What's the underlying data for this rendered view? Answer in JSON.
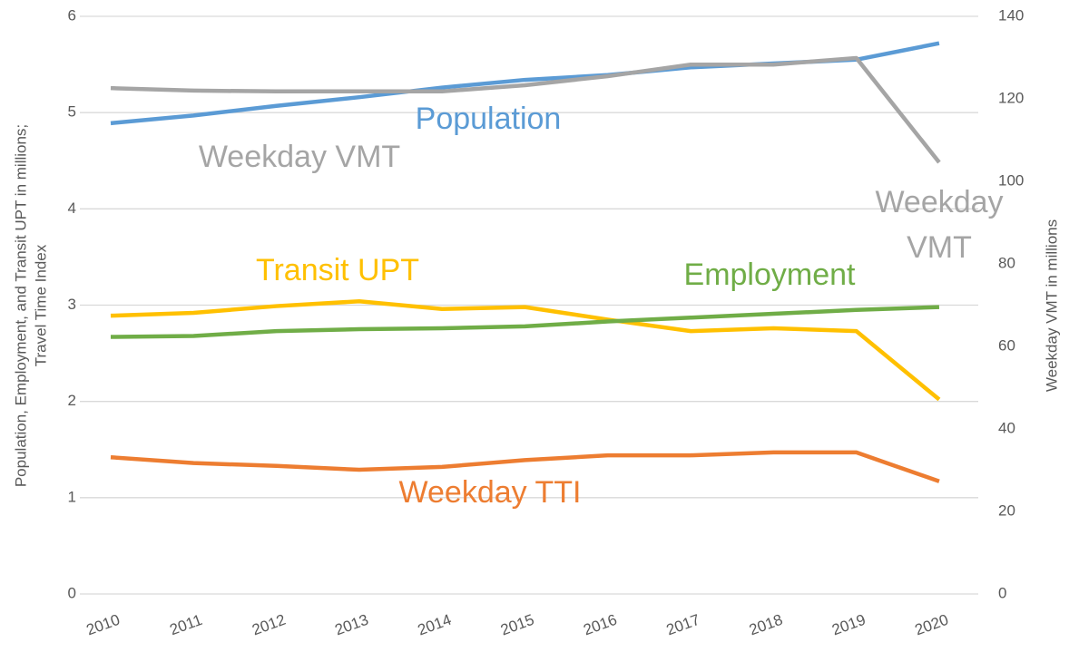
{
  "chart_data": {
    "type": "line",
    "categories": [
      "2010",
      "2011",
      "2012",
      "2013",
      "2014",
      "2015",
      "2016",
      "2017",
      "2018",
      "2019",
      "2020"
    ],
    "series": [
      {
        "name": "Population",
        "color": "#5b9bd5",
        "values": [
          4.89,
          4.97,
          5.07,
          5.16,
          5.26,
          5.34,
          5.39,
          5.47,
          5.51,
          5.55,
          5.72
        ]
      },
      {
        "name": "Weekday VMT",
        "color": "#a5a5a5",
        "axis": "y2",
        "values": [
          122.6,
          122.0,
          121.8,
          121.8,
          121.8,
          123.3,
          125.5,
          128.3,
          128.3,
          129.9,
          104.6
        ]
      },
      {
        "name": "Transit UPT",
        "color": "#ffc000",
        "values": [
          2.89,
          2.92,
          2.99,
          3.04,
          2.96,
          2.98,
          2.85,
          2.73,
          2.76,
          2.73,
          2.02
        ]
      },
      {
        "name": "Employment",
        "color": "#70ad47",
        "values": [
          2.67,
          2.68,
          2.73,
          2.75,
          2.76,
          2.78,
          2.83,
          2.87,
          2.91,
          2.95,
          2.98
        ]
      },
      {
        "name": "Weekday TTI",
        "color": "#ed7d31",
        "values": [
          1.42,
          1.36,
          1.33,
          1.29,
          1.32,
          1.39,
          1.44,
          1.44,
          1.47,
          1.47,
          1.17
        ]
      }
    ],
    "annotations": [
      "Weekday",
      "VMT"
    ],
    "ylabel": [
      "Population, Employment, and Transit UPT in millions;",
      "Travel Time Index"
    ],
    "y2label": "Weekday VMT in millions",
    "ylim": [
      0,
      6
    ],
    "yticks": [
      0,
      1,
      2,
      3,
      4,
      5,
      6
    ],
    "y2lim": [
      0,
      140
    ],
    "y2ticks": [
      0,
      20,
      40,
      60,
      80,
      100,
      120,
      140
    ],
    "grid": true
  }
}
